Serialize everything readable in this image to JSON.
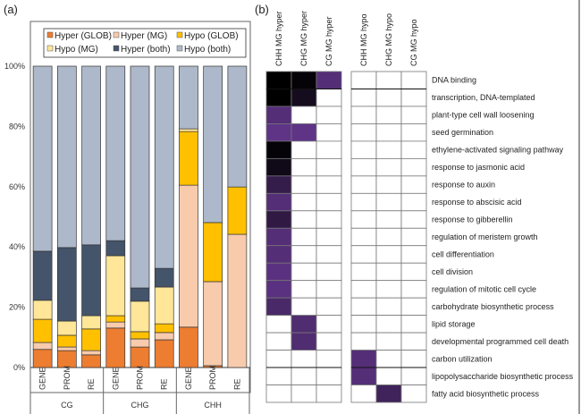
{
  "chart_data": [
    {
      "panel": "(a)",
      "type": "bar",
      "stacked": true,
      "groups": [
        "CG",
        "CHG",
        "CHH"
      ],
      "categories": [
        "GENE",
        "PROM",
        "RE",
        "GENE",
        "PROM",
        "RE",
        "GENE",
        "PROM",
        "RE"
      ],
      "category_groups": [
        "CG",
        "CG",
        "CG",
        "CHG",
        "CHG",
        "CHG",
        "CHH",
        "CHH",
        "CHH"
      ],
      "yticks": [
        "0%",
        "20%",
        "40%",
        "60%",
        "80%",
        "100%"
      ],
      "ylim": [
        0,
        100
      ],
      "legend_position": "top",
      "series": [
        {
          "name": "Hyper (GLOB)",
          "color": "#ED7D31",
          "values": [
            6.0,
            5.6,
            4.2,
            13.1,
            6.8,
            9.2,
            13.4,
            0.6,
            0.0
          ]
        },
        {
          "name": "Hyper (MG)",
          "color": "#F8CBAD",
          "values": [
            2.3,
            1.2,
            1.4,
            2.0,
            2.7,
            2.4,
            47.1,
            27.9,
            44.2
          ]
        },
        {
          "name": "Hypo (GLOB)",
          "color": "#FFC000",
          "values": [
            7.7,
            3.9,
            7.2,
            2.1,
            2.4,
            2.9,
            17.8,
            19.6,
            15.7
          ]
        },
        {
          "name": "Hypo (MG)",
          "color": "#FFE699",
          "values": [
            6.3,
            4.7,
            4.4,
            19.9,
            10.1,
            12.2,
            0.9,
            0.0,
            0.0
          ]
        },
        {
          "name": "Hyper (both)",
          "color": "#44546A",
          "values": [
            16.3,
            24.4,
            23.5,
            5.0,
            4.4,
            6.2,
            0.0,
            0.0,
            0.0
          ]
        },
        {
          "name": "Hypo (both)",
          "color": "#ADB9CA",
          "values": [
            61.4,
            60.2,
            59.3,
            57.9,
            73.6,
            67.1,
            20.8,
            51.9,
            40.1
          ]
        }
      ],
      "title": "",
      "xlabel": "",
      "ylabel": ""
    },
    {
      "panel": "(b)",
      "type": "heatmap",
      "columns": [
        "CHH MG hyper",
        "CHG MG hyper",
        "CG MG hyper",
        "CHH MG hypo",
        "CHG MG hypo",
        "CG MG hypo"
      ],
      "rows": [
        "DNA binding",
        "transcription, DNA-templated",
        "plant-type cell wall loosening",
        "seed germination",
        "ethylene-activated signaling pathway",
        "response to jasmonic acid",
        "response to auxin",
        "response to abscisic acid",
        "response to gibberellin",
        "regulation of meristem growth",
        "cell differentiation",
        "cell division",
        "regulation of mitotic cell cycle",
        "carbohydrate biosynthetic process",
        "lipid storage",
        "developmental programmed cell death",
        "carbon utilization",
        "lipopolysaccharide biosynthetic process",
        "fatty acid biosynthetic process"
      ],
      "color_scale": {
        "low": "#6A3A96",
        "high": "#000000",
        "empty": "#FFFFFF"
      },
      "values": [
        [
          1.0,
          0.95,
          0.2,
          null,
          null,
          null
        ],
        [
          1.0,
          0.8,
          null,
          null,
          null,
          null
        ],
        [
          0.2,
          null,
          null,
          null,
          null,
          null
        ],
        [
          0.1,
          0.1,
          null,
          null,
          null,
          null
        ],
        [
          0.95,
          null,
          null,
          null,
          null,
          null
        ],
        [
          0.85,
          null,
          null,
          null,
          null,
          null
        ],
        [
          0.5,
          null,
          null,
          null,
          null,
          null
        ],
        [
          0.2,
          null,
          null,
          null,
          null,
          null
        ],
        [
          0.55,
          null,
          null,
          null,
          null,
          null
        ],
        [
          0.2,
          null,
          null,
          null,
          null,
          null
        ],
        [
          0.2,
          null,
          null,
          null,
          null,
          null
        ],
        [
          0.15,
          null,
          null,
          null,
          null,
          null
        ],
        [
          0.15,
          null,
          null,
          null,
          null,
          null
        ],
        [
          0.3,
          null,
          null,
          null,
          null,
          null
        ],
        [
          null,
          0.25,
          null,
          null,
          null,
          null
        ],
        [
          null,
          0.25,
          null,
          null,
          null,
          null
        ],
        [
          null,
          null,
          null,
          0.2,
          null,
          null
        ],
        [
          null,
          null,
          null,
          0.2,
          null,
          null
        ],
        [
          null,
          null,
          null,
          null,
          0.4,
          null
        ]
      ]
    }
  ]
}
